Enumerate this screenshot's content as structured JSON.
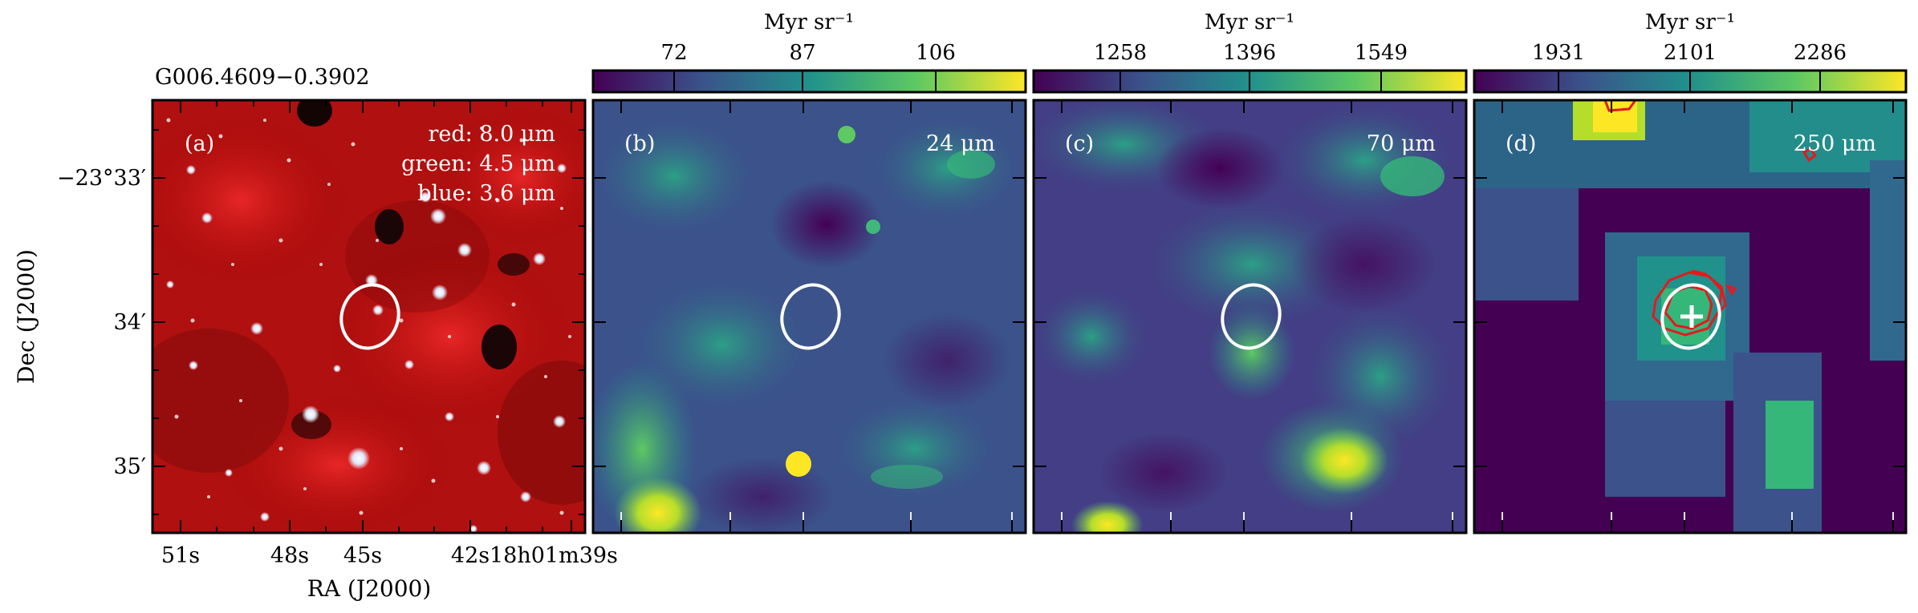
{
  "figure": {
    "source_name": "G006.4609−0.3902",
    "ylabel": "Dec (J2000)",
    "xlabel": "RA (J2000)",
    "dec_ticks": [
      "−23°33′",
      "34′",
      "35′"
    ],
    "ra_ticks": [
      "51s",
      "48s",
      "45s",
      "42s",
      "18h01m39s"
    ]
  },
  "colorbars": [
    {
      "unit": "Myr sr⁻¹",
      "ticks": [
        "72",
        "87",
        "106"
      ]
    },
    {
      "unit": "Myr sr⁻¹",
      "ticks": [
        "1258",
        "1396",
        "1549"
      ]
    },
    {
      "unit": "Myr sr⁻¹",
      "ticks": [
        "1931",
        "2101",
        "2286"
      ]
    }
  ],
  "panels": [
    {
      "letter": "(a)",
      "legend": [
        "red: 8.0 μm",
        "green: 4.5 μm",
        "blue: 3.6 μm"
      ],
      "colors": [
        "#d81f1f",
        "#3fc24a",
        "#4a7ff0"
      ]
    },
    {
      "letter": "(b)",
      "band": "24 μm"
    },
    {
      "letter": "(c)",
      "band": "70 μm"
    },
    {
      "letter": "(d)",
      "band": "250 μm"
    }
  ],
  "colormap": [
    "#440154",
    "#3b528b",
    "#21918c",
    "#5ec962",
    "#fde725"
  ],
  "marker_colors": {
    "ellipse": "#ffffff",
    "contour": "#e41a1c",
    "cross": "#ffffff"
  }
}
